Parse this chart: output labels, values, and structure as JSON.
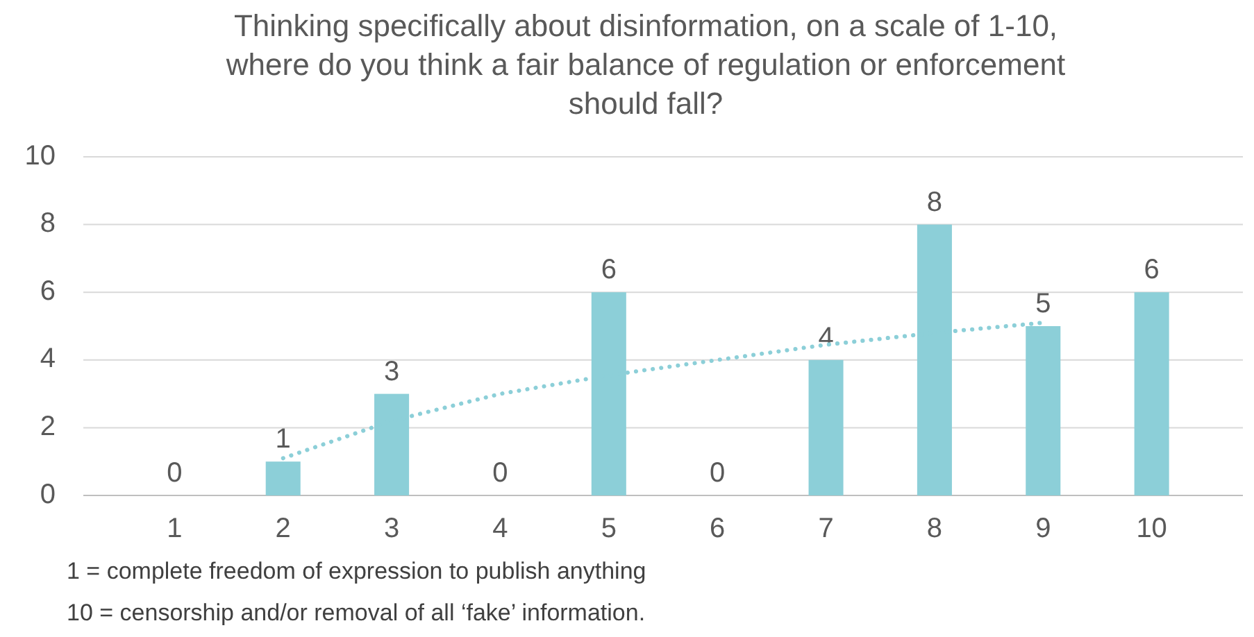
{
  "chart_data": {
    "type": "bar",
    "title": "Thinking specifically about disinformation, on a scale of 1-10,\nwhere do you think a fair balance of regulation or enforcement\nshould fall?",
    "categories": [
      "1",
      "2",
      "3",
      "4",
      "5",
      "6",
      "7",
      "8",
      "9",
      "10"
    ],
    "series": [
      {
        "color": "#8ccfd8",
        "values": [
          0,
          1,
          3,
          0,
          6,
          0,
          4,
          8,
          5,
          6
        ],
        "value_labels": [
          "0",
          "1",
          "3",
          "0",
          "6",
          "0",
          "4",
          "8",
          "5",
          "6"
        ]
      },
      {
        "type": "line",
        "color": "#8ccfd8",
        "line_style": "dotted",
        "values": [
          null,
          1.1,
          2.2,
          3.0,
          3.55,
          4.0,
          4.45,
          4.8,
          5.1,
          null
        ]
      }
    ],
    "ylim": [
      0,
      10
    ],
    "yticks": [
      0,
      2,
      4,
      6,
      8,
      10
    ],
    "grid": "y",
    "annotations": [
      "1 = complete freedom of expression to publish anything",
      "10 = censorship and/or removal of all ‘fake’ information."
    ]
  }
}
